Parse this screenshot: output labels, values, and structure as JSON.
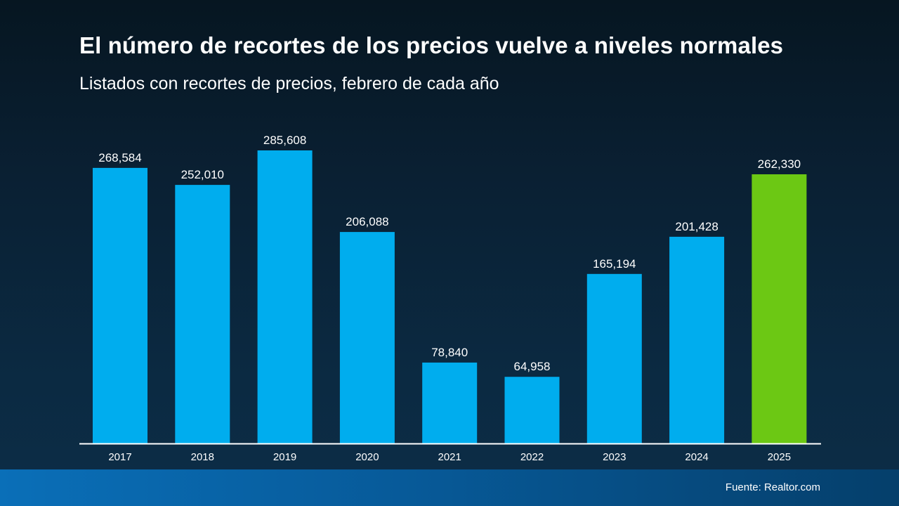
{
  "title": "El número de recortes de los precios vuelve a niveles normales",
  "subtitle": "Listados con recortes de precios, febrero de cada año",
  "source": "Fuente: Realtor.com",
  "colors": {
    "bar": "#00adee",
    "highlight": "#6cc814",
    "axis": "#ffffff",
    "text": "#ffffff"
  },
  "chart_data": {
    "type": "bar",
    "title": "El número de recortes de los precios vuelve a niveles normales",
    "subtitle": "Listados con recortes de precios, febrero de cada año",
    "xlabel": "",
    "ylabel": "",
    "ylim": [
      0,
      300000
    ],
    "grid": false,
    "categories": [
      "2017",
      "2018",
      "2019",
      "2020",
      "2021",
      "2022",
      "2023",
      "2024",
      "2025"
    ],
    "values": [
      268584,
      252010,
      285608,
      206088,
      78840,
      64958,
      165194,
      201428,
      262330
    ],
    "value_labels": [
      "268,584",
      "252,010",
      "285,608",
      "206,088",
      "78,840",
      "64,958",
      "165,194",
      "201,428",
      "262,330"
    ],
    "highlight_category": "2025"
  }
}
